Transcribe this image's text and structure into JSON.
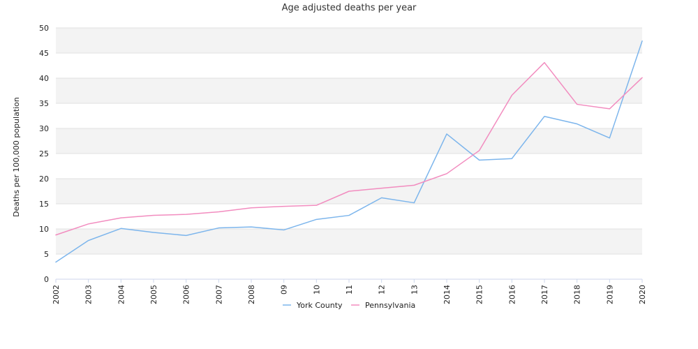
{
  "chart_data": {
    "type": "line",
    "title": "Age adjusted deaths per year",
    "xlabel": "",
    "ylabel": "Deaths per 100,000 population",
    "ylim": [
      0,
      50
    ],
    "yticks": [
      0,
      5,
      10,
      15,
      20,
      25,
      30,
      35,
      40,
      45,
      50
    ],
    "categories": [
      "2002",
      "2003",
      "2004",
      "2005",
      "2006",
      "2007",
      "2008",
      "09",
      "10",
      "11",
      "12",
      "13",
      "2014",
      "2015",
      "2016",
      "2017",
      "2018",
      "2019",
      "2020"
    ],
    "grid": true,
    "legend_position": "bottom-center",
    "series": [
      {
        "name": "York County",
        "color": "#7cb5ec",
        "values": [
          3.4,
          7.7,
          10.1,
          9.3,
          8.7,
          10.2,
          10.4,
          9.8,
          11.9,
          12.7,
          16.2,
          15.2,
          28.9,
          23.7,
          24.0,
          32.4,
          30.9,
          28.1,
          47.4
        ]
      },
      {
        "name": "Pennsylvania",
        "color": "#f28cbf",
        "values": [
          8.8,
          11.0,
          12.2,
          12.7,
          12.9,
          13.4,
          14.2,
          14.5,
          14.7,
          17.5,
          18.1,
          18.7,
          21.0,
          25.6,
          36.6,
          43.1,
          34.8,
          33.9,
          40.1
        ]
      }
    ]
  }
}
